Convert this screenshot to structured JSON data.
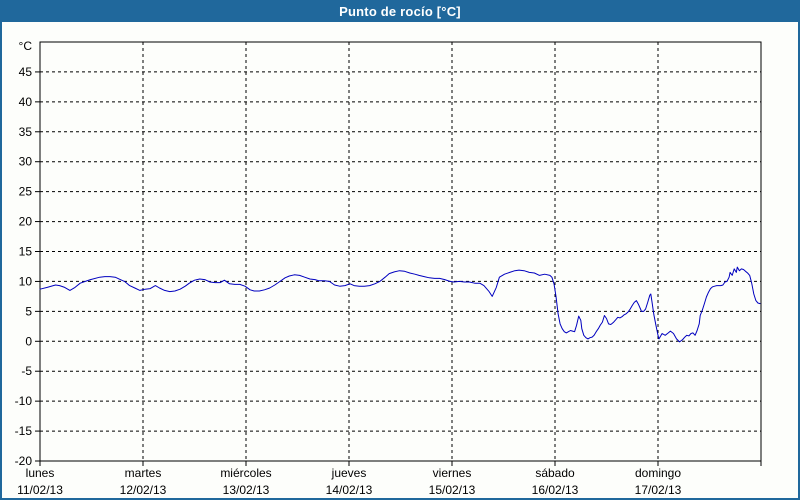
{
  "window": {
    "title": "Punto de rocío [°C]"
  },
  "colors": {
    "frame": "#20689c",
    "title_text": "#ffffff",
    "plot_background": "#fdfefb",
    "grid": "#000000",
    "axis": "#000000",
    "line": "#0000bf"
  },
  "chart_data": {
    "type": "line",
    "title": "Punto de rocío [°C]",
    "ylabel": "°C",
    "unit_label": "°C",
    "ylim": [
      -20,
      50
    ],
    "yticks": [
      -20,
      -15,
      -10,
      -5,
      0,
      5,
      10,
      15,
      20,
      25,
      30,
      35,
      40,
      45
    ],
    "grid": "dashed",
    "legend": "none",
    "x_days": [
      {
        "name": "lunes",
        "date": "11/02/13"
      },
      {
        "name": "martes",
        "date": "12/02/13"
      },
      {
        "name": "miércoles",
        "date": "13/02/13"
      },
      {
        "name": "jueves",
        "date": "14/02/13"
      },
      {
        "name": "viernes",
        "date": "15/02/13"
      },
      {
        "name": "sábado",
        "date": "16/02/13"
      },
      {
        "name": "domingo",
        "date": "17/02/13"
      }
    ],
    "series": [
      {
        "name": "Punto de rocío",
        "color": "#0000bf",
        "points": [
          [
            0.0,
            8.7
          ],
          [
            0.07,
            9.0
          ],
          [
            0.15,
            9.4
          ],
          [
            0.19,
            9.3
          ],
          [
            0.24,
            9.0
          ],
          [
            0.29,
            8.5
          ],
          [
            0.34,
            9.0
          ],
          [
            0.39,
            9.7
          ],
          [
            0.44,
            10.0
          ],
          [
            0.49,
            10.3
          ],
          [
            0.58,
            10.7
          ],
          [
            0.63,
            10.8
          ],
          [
            0.68,
            10.8
          ],
          [
            0.73,
            10.7
          ],
          [
            0.78,
            10.3
          ],
          [
            0.82,
            10.0
          ],
          [
            0.87,
            9.3
          ],
          [
            0.92,
            8.9
          ],
          [
            0.97,
            8.5
          ],
          [
            1.02,
            8.7
          ],
          [
            1.07,
            8.8
          ],
          [
            1.12,
            9.3
          ],
          [
            1.16,
            8.9
          ],
          [
            1.21,
            8.5
          ],
          [
            1.26,
            8.3
          ],
          [
            1.31,
            8.4
          ],
          [
            1.36,
            8.7
          ],
          [
            1.41,
            9.2
          ],
          [
            1.45,
            9.7
          ],
          [
            1.5,
            10.2
          ],
          [
            1.55,
            10.4
          ],
          [
            1.6,
            10.3
          ],
          [
            1.65,
            9.9
          ],
          [
            1.7,
            9.8
          ],
          [
            1.75,
            9.8
          ],
          [
            1.79,
            10.2
          ],
          [
            1.84,
            9.6
          ],
          [
            1.89,
            9.5
          ],
          [
            1.94,
            9.5
          ],
          [
            1.99,
            9.2
          ],
          [
            2.04,
            8.6
          ],
          [
            2.08,
            8.4
          ],
          [
            2.13,
            8.4
          ],
          [
            2.18,
            8.6
          ],
          [
            2.23,
            8.9
          ],
          [
            2.28,
            9.4
          ],
          [
            2.33,
            10.0
          ],
          [
            2.38,
            10.6
          ],
          [
            2.42,
            10.9
          ],
          [
            2.47,
            11.1
          ],
          [
            2.52,
            11.0
          ],
          [
            2.57,
            10.7
          ],
          [
            2.62,
            10.4
          ],
          [
            2.67,
            10.3
          ],
          [
            2.71,
            10.1
          ],
          [
            2.76,
            10.1
          ],
          [
            2.81,
            10.0
          ],
          [
            2.86,
            9.4
          ],
          [
            2.91,
            9.2
          ],
          [
            2.96,
            9.3
          ],
          [
            3.01,
            9.6
          ],
          [
            3.05,
            9.3
          ],
          [
            3.1,
            9.2
          ],
          [
            3.15,
            9.2
          ],
          [
            3.2,
            9.3
          ],
          [
            3.25,
            9.6
          ],
          [
            3.3,
            10.0
          ],
          [
            3.35,
            10.7
          ],
          [
            3.39,
            11.3
          ],
          [
            3.44,
            11.6
          ],
          [
            3.49,
            11.8
          ],
          [
            3.54,
            11.7
          ],
          [
            3.59,
            11.4
          ],
          [
            3.64,
            11.2
          ],
          [
            3.68,
            11.0
          ],
          [
            3.73,
            10.8
          ],
          [
            3.78,
            10.6
          ],
          [
            3.83,
            10.5
          ],
          [
            3.88,
            10.5
          ],
          [
            3.93,
            10.3
          ],
          [
            3.98,
            10.0
          ],
          [
            4.02,
            9.9
          ],
          [
            4.07,
            10.0
          ],
          [
            4.12,
            9.9
          ],
          [
            4.17,
            9.9
          ],
          [
            4.22,
            9.7
          ],
          [
            4.27,
            9.7
          ],
          [
            4.31,
            9.3
          ],
          [
            4.36,
            8.3
          ],
          [
            4.39,
            7.5
          ],
          [
            4.43,
            9.0
          ],
          [
            4.46,
            10.7
          ],
          [
            4.51,
            11.2
          ],
          [
            4.56,
            11.5
          ],
          [
            4.61,
            11.8
          ],
          [
            4.65,
            11.9
          ],
          [
            4.7,
            11.8
          ],
          [
            4.75,
            11.5
          ],
          [
            4.8,
            11.4
          ],
          [
            4.85,
            11.0
          ],
          [
            4.9,
            11.2
          ],
          [
            4.95,
            11.0
          ],
          [
            4.97,
            10.7
          ],
          [
            4.99,
            9.6
          ],
          [
            5.01,
            7.5
          ],
          [
            5.03,
            4.6
          ],
          [
            5.05,
            2.9
          ],
          [
            5.07,
            2.1
          ],
          [
            5.09,
            1.6
          ],
          [
            5.11,
            1.4
          ],
          [
            5.13,
            1.6
          ],
          [
            5.15,
            1.8
          ],
          [
            5.17,
            1.7
          ],
          [
            5.19,
            1.6
          ],
          [
            5.21,
            2.7
          ],
          [
            5.23,
            4.2
          ],
          [
            5.25,
            3.5
          ],
          [
            5.26,
            2.1
          ],
          [
            5.28,
            1.0
          ],
          [
            5.3,
            0.6
          ],
          [
            5.32,
            0.4
          ],
          [
            5.34,
            0.6
          ],
          [
            5.36,
            0.7
          ],
          [
            5.38,
            1.0
          ],
          [
            5.4,
            1.6
          ],
          [
            5.42,
            2.1
          ],
          [
            5.44,
            2.7
          ],
          [
            5.46,
            3.2
          ],
          [
            5.48,
            4.3
          ],
          [
            5.5,
            3.8
          ],
          [
            5.52,
            2.9
          ],
          [
            5.54,
            2.8
          ],
          [
            5.55,
            2.9
          ],
          [
            5.57,
            3.2
          ],
          [
            5.59,
            3.6
          ],
          [
            5.61,
            4.0
          ],
          [
            5.63,
            3.9
          ],
          [
            5.65,
            4.1
          ],
          [
            5.67,
            4.4
          ],
          [
            5.69,
            4.6
          ],
          [
            5.71,
            4.9
          ],
          [
            5.73,
            5.4
          ],
          [
            5.75,
            6.0
          ],
          [
            5.77,
            6.5
          ],
          [
            5.79,
            6.8
          ],
          [
            5.81,
            6.2
          ],
          [
            5.83,
            5.4
          ],
          [
            5.84,
            5.0
          ],
          [
            5.86,
            5.0
          ],
          [
            5.88,
            5.4
          ],
          [
            5.9,
            6.5
          ],
          [
            5.92,
            7.7
          ],
          [
            5.93,
            7.9
          ],
          [
            5.94,
            6.8
          ],
          [
            5.96,
            4.4
          ],
          [
            5.98,
            2.7
          ],
          [
            6.0,
            1.0
          ],
          [
            6.01,
            0.4
          ],
          [
            6.04,
            1.3
          ],
          [
            6.07,
            1.0
          ],
          [
            6.1,
            1.4
          ],
          [
            6.12,
            1.7
          ],
          [
            6.15,
            1.3
          ],
          [
            6.18,
            0.4
          ],
          [
            6.21,
            -0.1
          ],
          [
            6.24,
            0.3
          ],
          [
            6.26,
            0.7
          ],
          [
            6.28,
            1.0
          ],
          [
            6.3,
            0.9
          ],
          [
            6.32,
            1.3
          ],
          [
            6.34,
            1.4
          ],
          [
            6.36,
            1.0
          ],
          [
            6.38,
            1.8
          ],
          [
            6.4,
            2.9
          ],
          [
            6.41,
            4.3
          ],
          [
            6.43,
            5.2
          ],
          [
            6.45,
            6.3
          ],
          [
            6.47,
            7.4
          ],
          [
            6.49,
            8.2
          ],
          [
            6.51,
            8.8
          ],
          [
            6.53,
            9.1
          ],
          [
            6.55,
            9.2
          ],
          [
            6.57,
            9.3
          ],
          [
            6.59,
            9.3
          ],
          [
            6.61,
            9.3
          ],
          [
            6.63,
            9.4
          ],
          [
            6.65,
            9.9
          ],
          [
            6.67,
            10.0
          ],
          [
            6.69,
            10.7
          ],
          [
            6.7,
            11.5
          ],
          [
            6.72,
            11.0
          ],
          [
            6.74,
            12.1
          ],
          [
            6.76,
            11.5
          ],
          [
            6.77,
            12.4
          ],
          [
            6.79,
            11.8
          ],
          [
            6.81,
            12.1
          ],
          [
            6.83,
            12.0
          ],
          [
            6.85,
            11.7
          ],
          [
            6.87,
            11.4
          ],
          [
            6.89,
            11.0
          ],
          [
            6.91,
            9.7
          ],
          [
            6.93,
            7.9
          ],
          [
            6.95,
            6.8
          ],
          [
            6.97,
            6.4
          ],
          [
            6.99,
            6.3
          ]
        ]
      }
    ]
  }
}
